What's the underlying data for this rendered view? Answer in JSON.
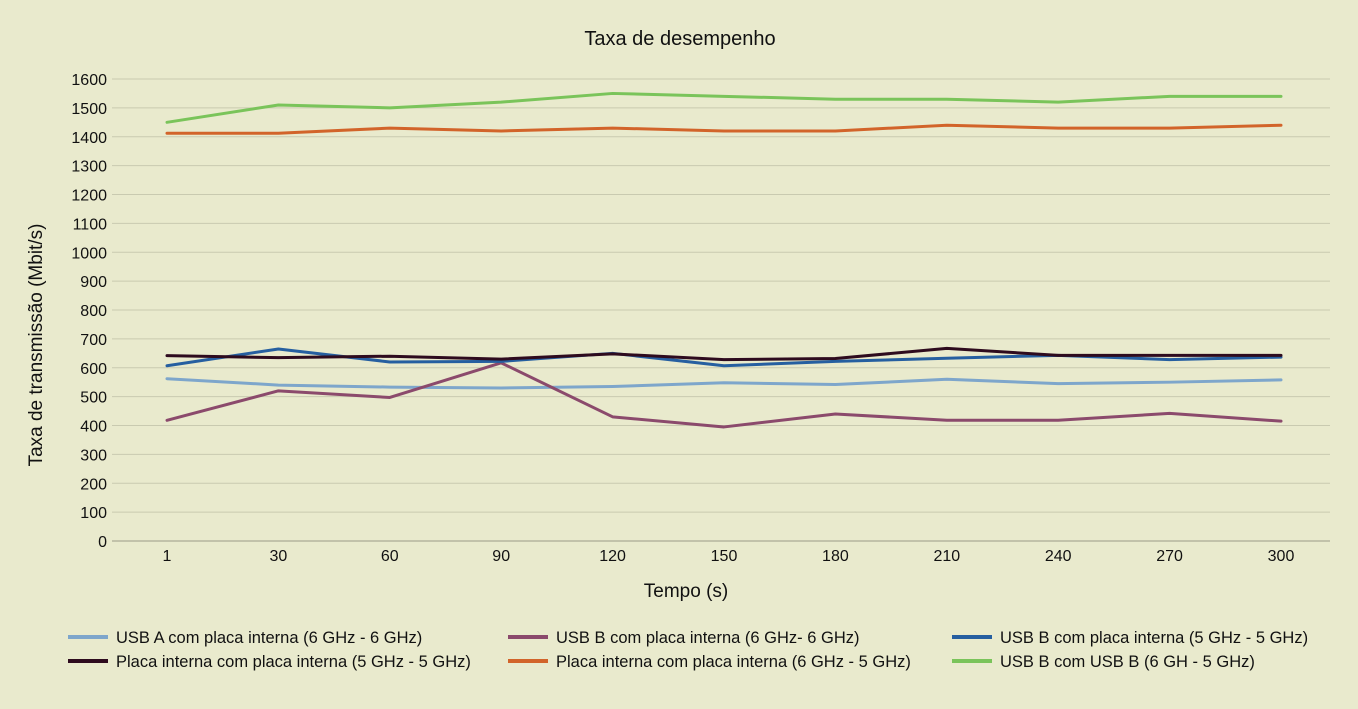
{
  "chart_data": {
    "type": "line",
    "title": "Taxa de desempenho",
    "xlabel": "Tempo (s)",
    "ylabel": "Taxa de transmissão (Mbit/s)",
    "ylim": [
      0,
      1600
    ],
    "yticks": [
      0,
      100,
      200,
      300,
      400,
      500,
      600,
      700,
      800,
      900,
      1000,
      1100,
      1200,
      1300,
      1400,
      1500,
      1600
    ],
    "categories": [
      "1",
      "30",
      "60",
      "90",
      "120",
      "150",
      "180",
      "210",
      "240",
      "270",
      "300"
    ],
    "grid": "horizontal",
    "legend_position": "bottom",
    "series": [
      {
        "name": "USB A  com placa interna (6 GHz - 6 GHz)",
        "color": "#7ea6cb",
        "values": [
          562,
          540,
          533,
          530,
          535,
          548,
          542,
          560,
          545,
          550,
          558
        ]
      },
      {
        "name": "USB B com placa interna (6 GHz- 6 GHz)",
        "color": "#8b4a6c",
        "values": [
          418,
          520,
          497,
          617,
          430,
          395,
          440,
          418,
          418,
          442,
          415
        ]
      },
      {
        "name": "USB B com placa interna (5 GHz - 5 GHz)",
        "color": "#265fa0",
        "values": [
          607,
          665,
          620,
          622,
          650,
          607,
          622,
          633,
          643,
          628,
          637
        ]
      },
      {
        "name": "Placa interna com placa interna (5 GHz - 5 GHz)",
        "color": "#2e0b1e",
        "values": [
          642,
          635,
          640,
          630,
          648,
          628,
          632,
          667,
          643,
          643,
          643
        ]
      },
      {
        "name": "Placa interna com placa interna (6 GHz - 5 GHz)",
        "color": "#d2642a",
        "values": [
          1412,
          1412,
          1430,
          1420,
          1430,
          1420,
          1420,
          1440,
          1430,
          1430,
          1440
        ]
      },
      {
        "name": "USB B com USB B (6 GH - 5 GHz)",
        "color": "#7ac45a",
        "values": [
          1450,
          1510,
          1500,
          1520,
          1550,
          1540,
          1530,
          1530,
          1520,
          1540,
          1540
        ]
      }
    ]
  }
}
